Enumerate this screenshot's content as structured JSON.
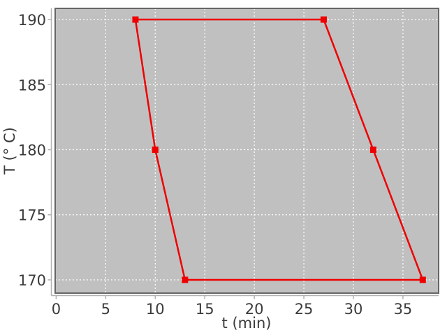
{
  "chart_data": {
    "type": "line",
    "title": "",
    "xlabel": "t (min)",
    "ylabel": "T (° C)",
    "x_ticks": [
      0,
      5,
      10,
      15,
      20,
      25,
      30,
      35
    ],
    "y_ticks": [
      170,
      175,
      180,
      185,
      190
    ],
    "xlim": [
      -0.1,
      38.6
    ],
    "ylim": [
      168.98,
      190.86
    ],
    "grid": true,
    "legend_position": "none",
    "series": [
      {
        "name": "temperature-profile",
        "color": "#ee0000",
        "marker": "square",
        "marker_size": 9,
        "line_width": 2.5,
        "closed": true,
        "points": [
          [
            8,
            190
          ],
          [
            27,
            190
          ],
          [
            32,
            180
          ],
          [
            37,
            170
          ],
          [
            13,
            170
          ],
          [
            10,
            180
          ]
        ]
      }
    ]
  },
  "colors": {
    "outer_background": "#ffffff",
    "plot_background": "#c0c0c0",
    "gridline": "#ffffff",
    "plot_frame": "#666666",
    "axis_line": "#b0b0b0",
    "tick_label": "#3b3b3b"
  }
}
